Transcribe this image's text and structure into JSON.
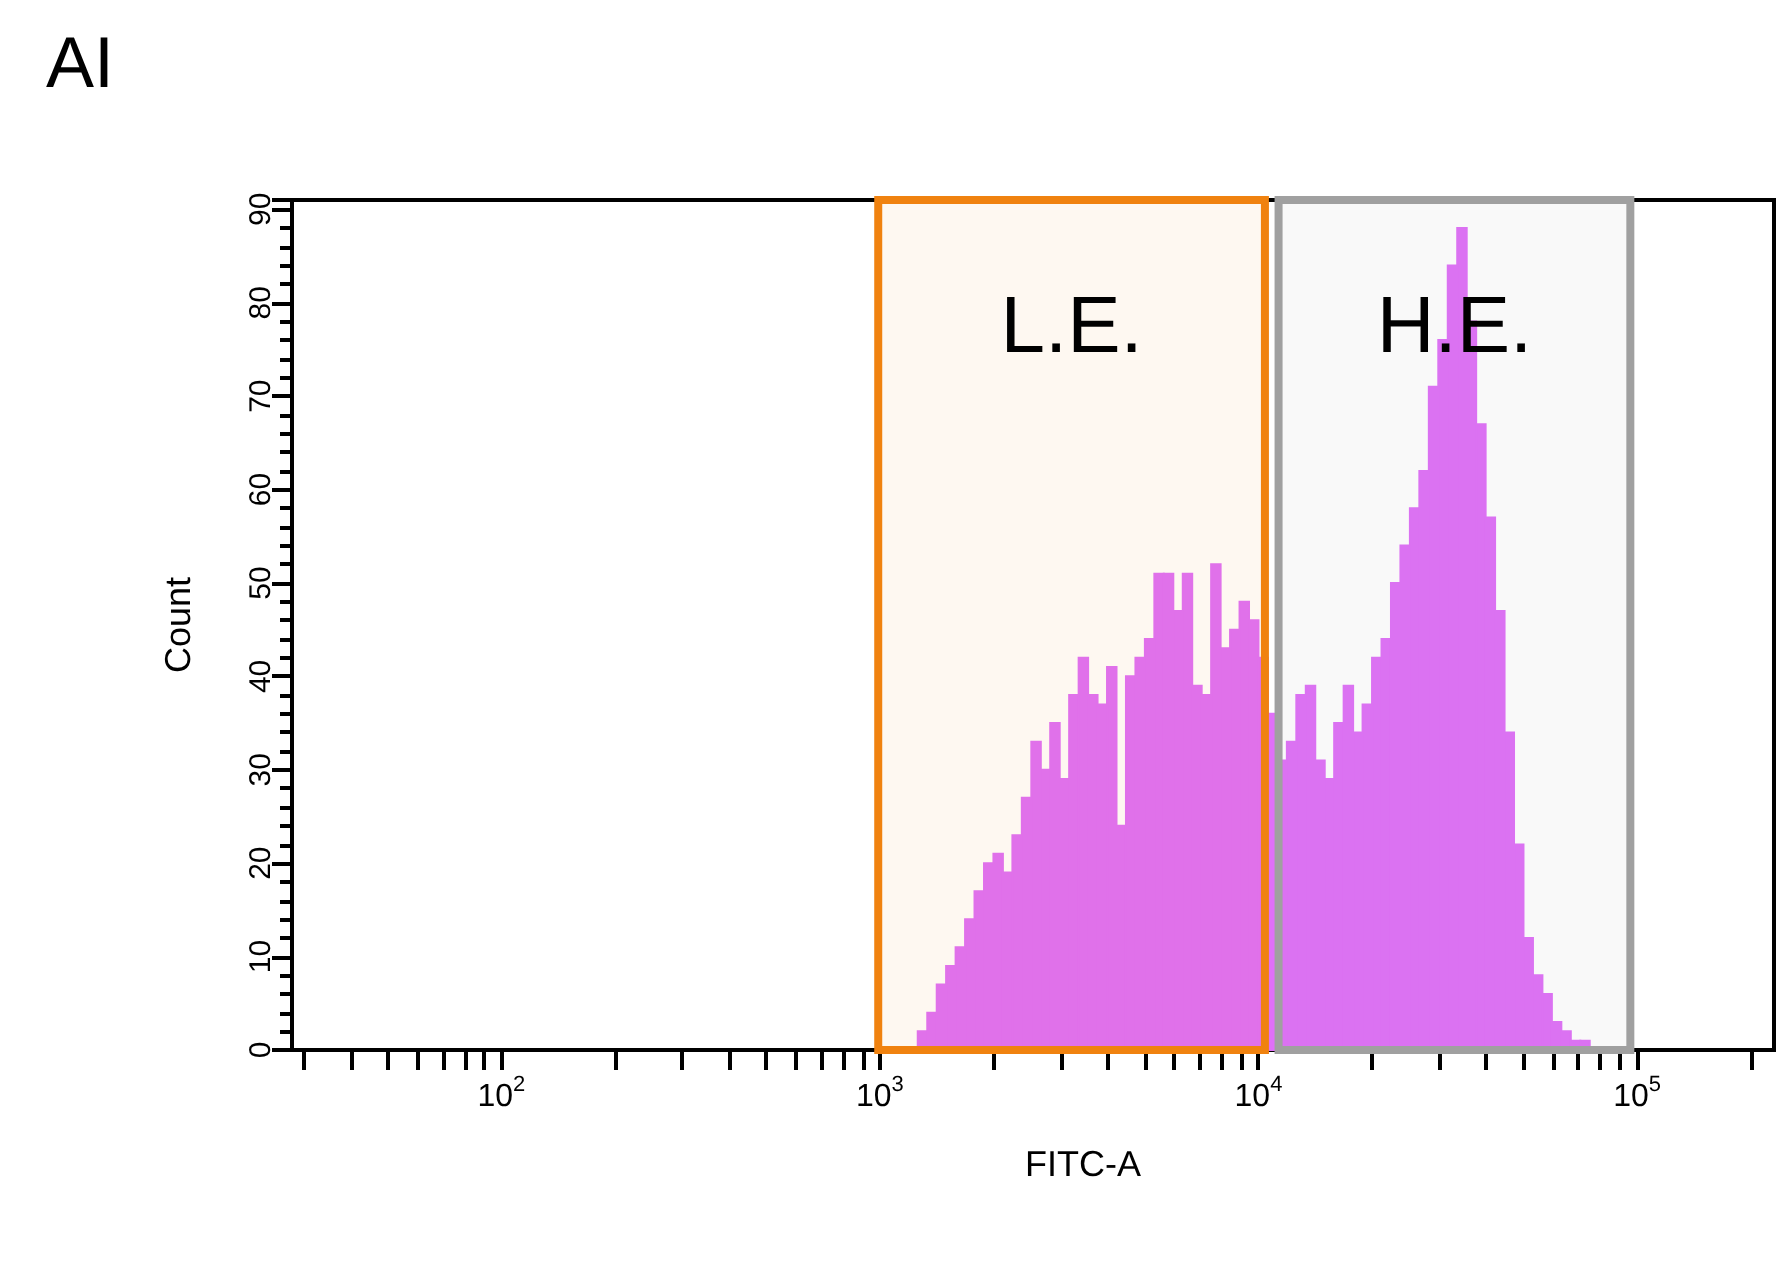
{
  "chart_data": {
    "type": "histogram",
    "title": "AI",
    "xlabel": "FITC-A",
    "ylabel": "Count",
    "log": "x",
    "color": "#e070f8",
    "bins": [
      1189,
      1259,
      1334,
      1413,
      1496,
      1585,
      1679,
      1778,
      1884,
      1995,
      2113,
      2239,
      2371,
      2512,
      2661,
      2818,
      2985,
      3162,
      3350,
      3548,
      3758,
      3981,
      4217,
      4467,
      4732,
      5012,
      5309,
      5623,
      5957,
      6310,
      6683,
      7079,
      7499,
      7943,
      8414,
      8913,
      9441,
      10000,
      10593,
      11220,
      11885,
      12589,
      13335,
      14125,
      14962,
      15849,
      16788,
      17783,
      18836,
      19953,
      21135,
      22387,
      23714,
      25119,
      26607,
      28184,
      29854,
      31623,
      33497,
      35481,
      37584,
      39811,
      42170,
      44668,
      47315,
      50119,
      53088,
      56234,
      59566,
      63096,
      66834,
      70795,
      74989,
      79433,
      84140
    ],
    "values": [
      0,
      2,
      4,
      7,
      9,
      11,
      14,
      17,
      20,
      21,
      19,
      23,
      27,
      33,
      30,
      35,
      29,
      38,
      42,
      38,
      37,
      41,
      24,
      40,
      42,
      44,
      51,
      51,
      47,
      51,
      39,
      38,
      52,
      43,
      45,
      48,
      46,
      42,
      36,
      31,
      33,
      38,
      39,
      31,
      29,
      35,
      39,
      34,
      37,
      42,
      44,
      50,
      54,
      58,
      62,
      71,
      76,
      84,
      88,
      78,
      67,
      57,
      47,
      34,
      22,
      12,
      8,
      6,
      3,
      2,
      1,
      1,
      0,
      0
    ],
    "xlim": [
      28,
      230000
    ],
    "ylim": [
      0,
      91
    ],
    "xticks": [
      {
        "value": 30,
        "label": null
      },
      {
        "value": 40,
        "label": null
      },
      {
        "value": 50,
        "label": null
      },
      {
        "value": 60,
        "label": null
      },
      {
        "value": 70,
        "label": null
      },
      {
        "value": 80,
        "label": null
      },
      {
        "value": 90,
        "label": null
      },
      {
        "value": 100,
        "label": "10$^{2}$"
      },
      {
        "value": 200,
        "label": null
      },
      {
        "value": 300,
        "label": null
      },
      {
        "value": 400,
        "label": null
      },
      {
        "value": 500,
        "label": null
      },
      {
        "value": 600,
        "label": null
      },
      {
        "value": 700,
        "label": null
      },
      {
        "value": 800,
        "label": null
      },
      {
        "value": 900,
        "label": null
      },
      {
        "value": 1000,
        "label": "10$^{3}$"
      },
      {
        "value": 2000,
        "label": null
      },
      {
        "value": 3000,
        "label": null
      },
      {
        "value": 4000,
        "label": null
      },
      {
        "value": 5000,
        "label": null
      },
      {
        "value": 6000,
        "label": null
      },
      {
        "value": 7000,
        "label": null
      },
      {
        "value": 8000,
        "label": null
      },
      {
        "value": 9000,
        "label": null
      },
      {
        "value": 10000,
        "label": "10$^{4}$"
      },
      {
        "value": 20000,
        "label": null
      },
      {
        "value": 30000,
        "label": null
      },
      {
        "value": 40000,
        "label": null
      },
      {
        "value": 50000,
        "label": null
      },
      {
        "value": 60000,
        "label": null
      },
      {
        "value": 70000,
        "label": null
      },
      {
        "value": 80000,
        "label": null
      },
      {
        "value": 90000,
        "label": null
      },
      {
        "value": 100000,
        "label": "10$^{5}$"
      },
      {
        "value": 200000,
        "label": null
      }
    ],
    "yticks": [
      0,
      10,
      20,
      30,
      40,
      50,
      60,
      70,
      80,
      90
    ],
    "bands": [
      {
        "axis": "x",
        "from": 990,
        "to": 10400,
        "label": "L.E.",
        "color": "#f0820f"
      },
      {
        "axis": "x",
        "from": 11300,
        "to": 96000,
        "label": "H.E.",
        "color": "#a0a0a0"
      }
    ]
  }
}
